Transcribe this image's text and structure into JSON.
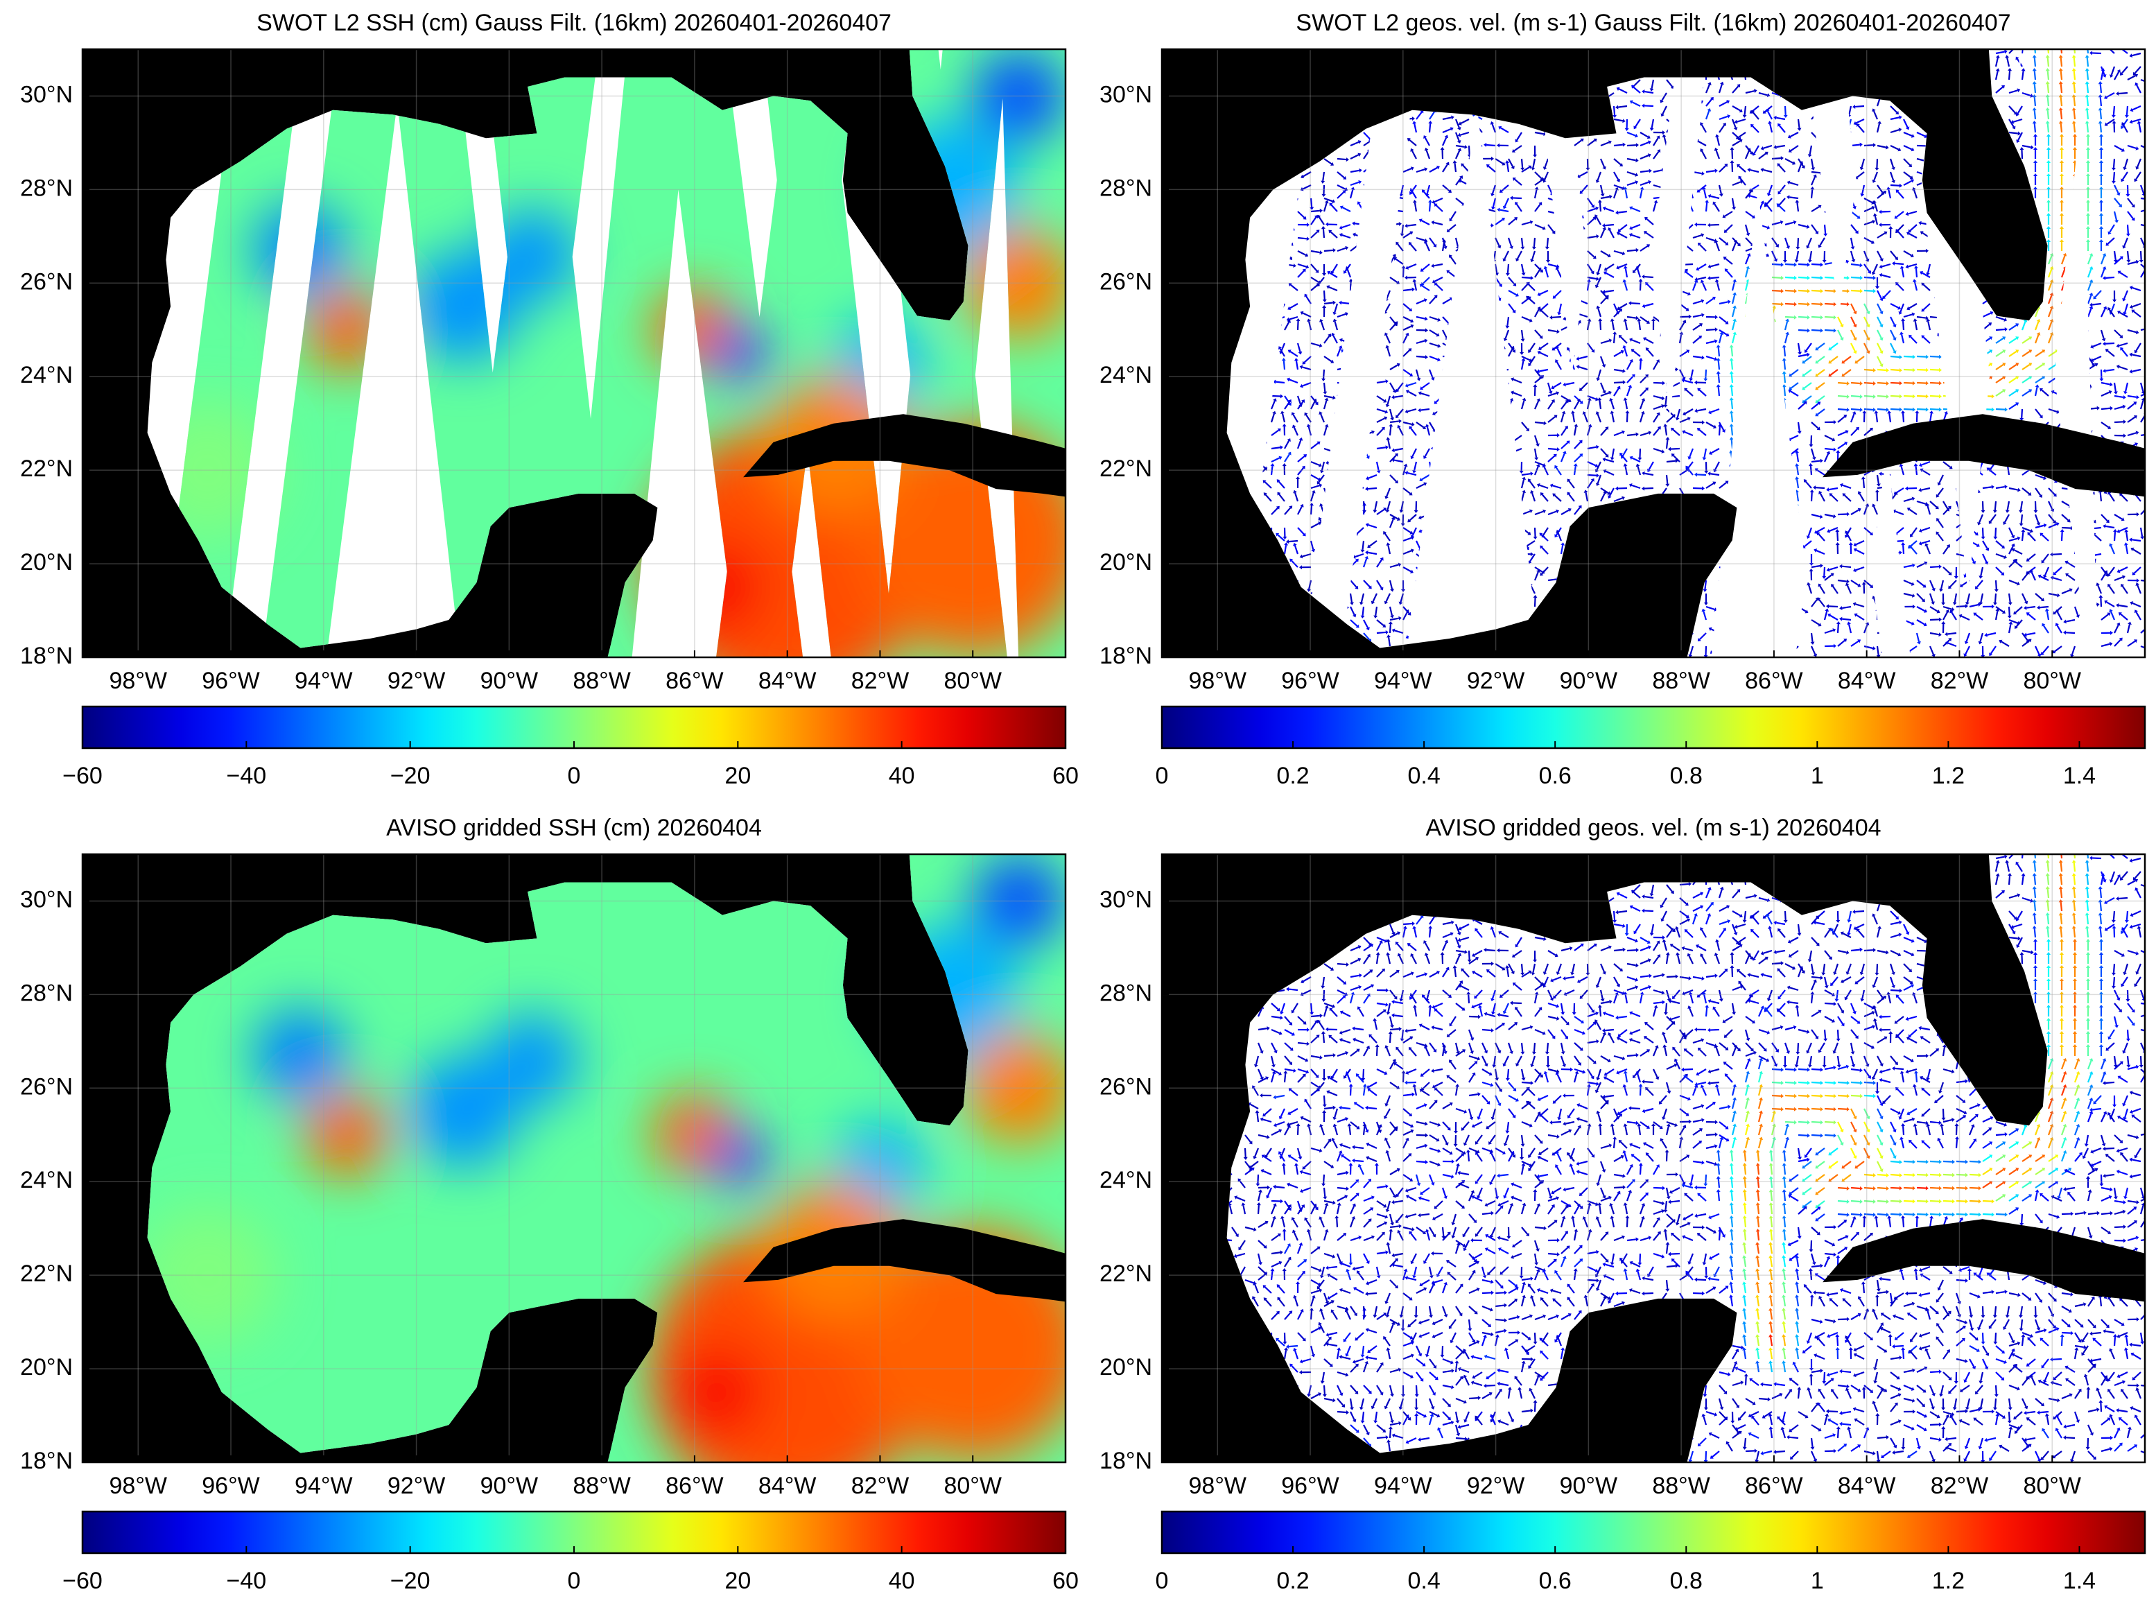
{
  "panels": [
    {
      "type": "scalar-field",
      "coverage": "swath",
      "title": "SWOT L2 SSH (cm) Gauss Filt. (16km) 20260401-20260407",
      "xlim": [
        -99.2,
        -78
      ],
      "ylim": [
        18,
        31
      ],
      "xticks": [
        {
          "value": -98,
          "label": "98°W"
        },
        {
          "value": -96,
          "label": "96°W"
        },
        {
          "value": -94,
          "label": "94°W"
        },
        {
          "value": -92,
          "label": "92°W"
        },
        {
          "value": -90,
          "label": "90°W"
        },
        {
          "value": -88,
          "label": "88°W"
        },
        {
          "value": -86,
          "label": "86°W"
        },
        {
          "value": -84,
          "label": "84°W"
        },
        {
          "value": -82,
          "label": "82°W"
        },
        {
          "value": -80,
          "label": "80°W"
        }
      ],
      "yticks": [
        {
          "value": 18,
          "label": "18°N"
        },
        {
          "value": 20,
          "label": "20°N"
        },
        {
          "value": 22,
          "label": "22°N"
        },
        {
          "value": 24,
          "label": "24°N"
        },
        {
          "value": 26,
          "label": "26°N"
        },
        {
          "value": 28,
          "label": "28°N"
        },
        {
          "value": 30,
          "label": "30°N"
        }
      ],
      "grid": true,
      "colorbar": {
        "colormap": "jet",
        "lim": [
          -60,
          60
        ],
        "ticks": [
          {
            "value": -60,
            "label": "−60"
          },
          {
            "value": -40,
            "label": "−40"
          },
          {
            "value": -20,
            "label": "−20"
          },
          0,
          20,
          40,
          60
        ]
      }
    },
    {
      "type": "vector-field",
      "coverage": "swath",
      "title": "SWOT L2 geos. vel. (m s-1) Gauss Filt. (16km) 20260401-20260407",
      "xlim": [
        -99.2,
        -78
      ],
      "ylim": [
        18,
        31
      ],
      "xticks": [
        {
          "value": -98,
          "label": "98°W"
        },
        {
          "value": -96,
          "label": "96°W"
        },
        {
          "value": -94,
          "label": "94°W"
        },
        {
          "value": -92,
          "label": "92°W"
        },
        {
          "value": -90,
          "label": "90°W"
        },
        {
          "value": -88,
          "label": "88°W"
        },
        {
          "value": -86,
          "label": "86°W"
        },
        {
          "value": -84,
          "label": "84°W"
        },
        {
          "value": -82,
          "label": "82°W"
        },
        {
          "value": -80,
          "label": "80°W"
        }
      ],
      "yticks": [
        {
          "value": 18,
          "label": "18°N"
        },
        {
          "value": 20,
          "label": "20°N"
        },
        {
          "value": 22,
          "label": "22°N"
        },
        {
          "value": 24,
          "label": "24°N"
        },
        {
          "value": 26,
          "label": "26°N"
        },
        {
          "value": 28,
          "label": "28°N"
        },
        {
          "value": 30,
          "label": "30°N"
        }
      ],
      "grid": true,
      "colorbar": {
        "colormap": "jet",
        "lim": [
          0,
          1.5
        ],
        "ticks": [
          0,
          0.2,
          0.4,
          0.6,
          0.8,
          1,
          1.2,
          1.4
        ]
      }
    },
    {
      "type": "scalar-field",
      "coverage": "gridded",
      "title": "AVISO gridded SSH (cm) 20260404",
      "xlim": [
        -99.2,
        -78
      ],
      "ylim": [
        18,
        31
      ],
      "xticks": [
        {
          "value": -98,
          "label": "98°W"
        },
        {
          "value": -96,
          "label": "96°W"
        },
        {
          "value": -94,
          "label": "94°W"
        },
        {
          "value": -92,
          "label": "92°W"
        },
        {
          "value": -90,
          "label": "90°W"
        },
        {
          "value": -88,
          "label": "88°W"
        },
        {
          "value": -86,
          "label": "86°W"
        },
        {
          "value": -84,
          "label": "84°W"
        },
        {
          "value": -82,
          "label": "82°W"
        },
        {
          "value": -80,
          "label": "80°W"
        }
      ],
      "yticks": [
        {
          "value": 18,
          "label": "18°N"
        },
        {
          "value": 20,
          "label": "20°N"
        },
        {
          "value": 22,
          "label": "22°N"
        },
        {
          "value": 24,
          "label": "24°N"
        },
        {
          "value": 26,
          "label": "26°N"
        },
        {
          "value": 28,
          "label": "28°N"
        },
        {
          "value": 30,
          "label": "30°N"
        }
      ],
      "grid": true,
      "colorbar": {
        "colormap": "jet",
        "lim": [
          -60,
          60
        ],
        "ticks": [
          {
            "value": -60,
            "label": "−60"
          },
          {
            "value": -40,
            "label": "−40"
          },
          {
            "value": -20,
            "label": "−20"
          },
          0,
          20,
          40,
          60
        ]
      }
    },
    {
      "type": "vector-field",
      "coverage": "gridded",
      "title": "AVISO gridded geos. vel. (m s-1)  20260404",
      "xlim": [
        -99.2,
        -78
      ],
      "ylim": [
        18,
        31
      ],
      "xticks": [
        {
          "value": -98,
          "label": "98°W"
        },
        {
          "value": -96,
          "label": "96°W"
        },
        {
          "value": -94,
          "label": "94°W"
        },
        {
          "value": -92,
          "label": "92°W"
        },
        {
          "value": -90,
          "label": "90°W"
        },
        {
          "value": -88,
          "label": "88°W"
        },
        {
          "value": -86,
          "label": "86°W"
        },
        {
          "value": -84,
          "label": "84°W"
        },
        {
          "value": -82,
          "label": "82°W"
        },
        {
          "value": -80,
          "label": "80°W"
        }
      ],
      "yticks": [
        {
          "value": 18,
          "label": "18°N"
        },
        {
          "value": 20,
          "label": "20°N"
        },
        {
          "value": 22,
          "label": "22°N"
        },
        {
          "value": 24,
          "label": "24°N"
        },
        {
          "value": 26,
          "label": "26°N"
        },
        {
          "value": 28,
          "label": "28°N"
        },
        {
          "value": 30,
          "label": "30°N"
        }
      ],
      "grid": true,
      "colorbar": {
        "colormap": "jet",
        "lim": [
          0,
          1.5
        ],
        "ticks": [
          0,
          0.2,
          0.4,
          0.6,
          0.8,
          1,
          1.2,
          1.4
        ]
      }
    }
  ]
}
